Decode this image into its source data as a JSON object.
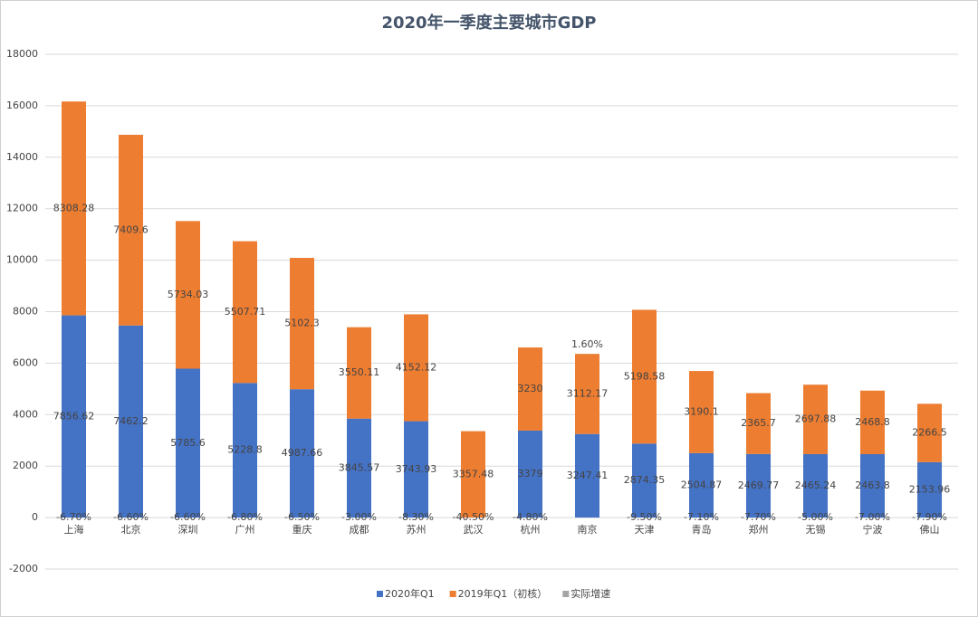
{
  "chart_data": {
    "type": "bar",
    "stacked": true,
    "title": "2020年一季度主要城市GDP",
    "categories": [
      "上海",
      "北京",
      "深圳",
      "广州",
      "重庆",
      "成都",
      "苏州",
      "武汉",
      "杭州",
      "南京",
      "天津",
      "青岛",
      "郑州",
      "无锡",
      "宁波",
      "佛山"
    ],
    "series": [
      {
        "name": "2020年Q1",
        "color": "#4472c4",
        "values": [
          7856.62,
          7462.2,
          5785.6,
          5228.8,
          4987.66,
          3845.57,
          3743.93,
          null,
          3379,
          3247.41,
          2874.35,
          2504.87,
          2469.77,
          2465.24,
          2463.8,
          2153.96
        ]
      },
      {
        "name": "2019年Q1（初核）",
        "color": "#ed7d31",
        "values": [
          8308.28,
          7409.6,
          5734.03,
          5507.71,
          5102.3,
          3550.11,
          4152.12,
          3357.48,
          3230,
          3112.17,
          5198.58,
          3190.1,
          2365.7,
          2697.88,
          2468.8,
          2266.5
        ]
      },
      {
        "name": "实际增速",
        "color": "#a5a5a5",
        "values": [
          -0.067,
          -0.066,
          -0.066,
          -0.068,
          -0.065,
          -0.03,
          -0.083,
          -0.405,
          -0.048,
          0.016,
          -0.095,
          -0.071,
          -0.077,
          -0.05,
          -0.07,
          -0.079
        ],
        "value_labels": [
          "-6.70%",
          "-6.60%",
          "-6.60%",
          "-6.80%",
          "-6.50%",
          "-3.00%",
          "-8.30%",
          "-40.50%",
          "-4.80%",
          "1.60%",
          "-9.50%",
          "-7.10%",
          "-7.70%",
          "-5.00%",
          "-7.00%",
          "-7.90%"
        ]
      }
    ],
    "ylim": [
      -2000,
      18000
    ],
    "yticks": [
      -2000,
      0,
      2000,
      4000,
      6000,
      8000,
      10000,
      12000,
      14000,
      16000,
      18000
    ],
    "grid": true
  }
}
